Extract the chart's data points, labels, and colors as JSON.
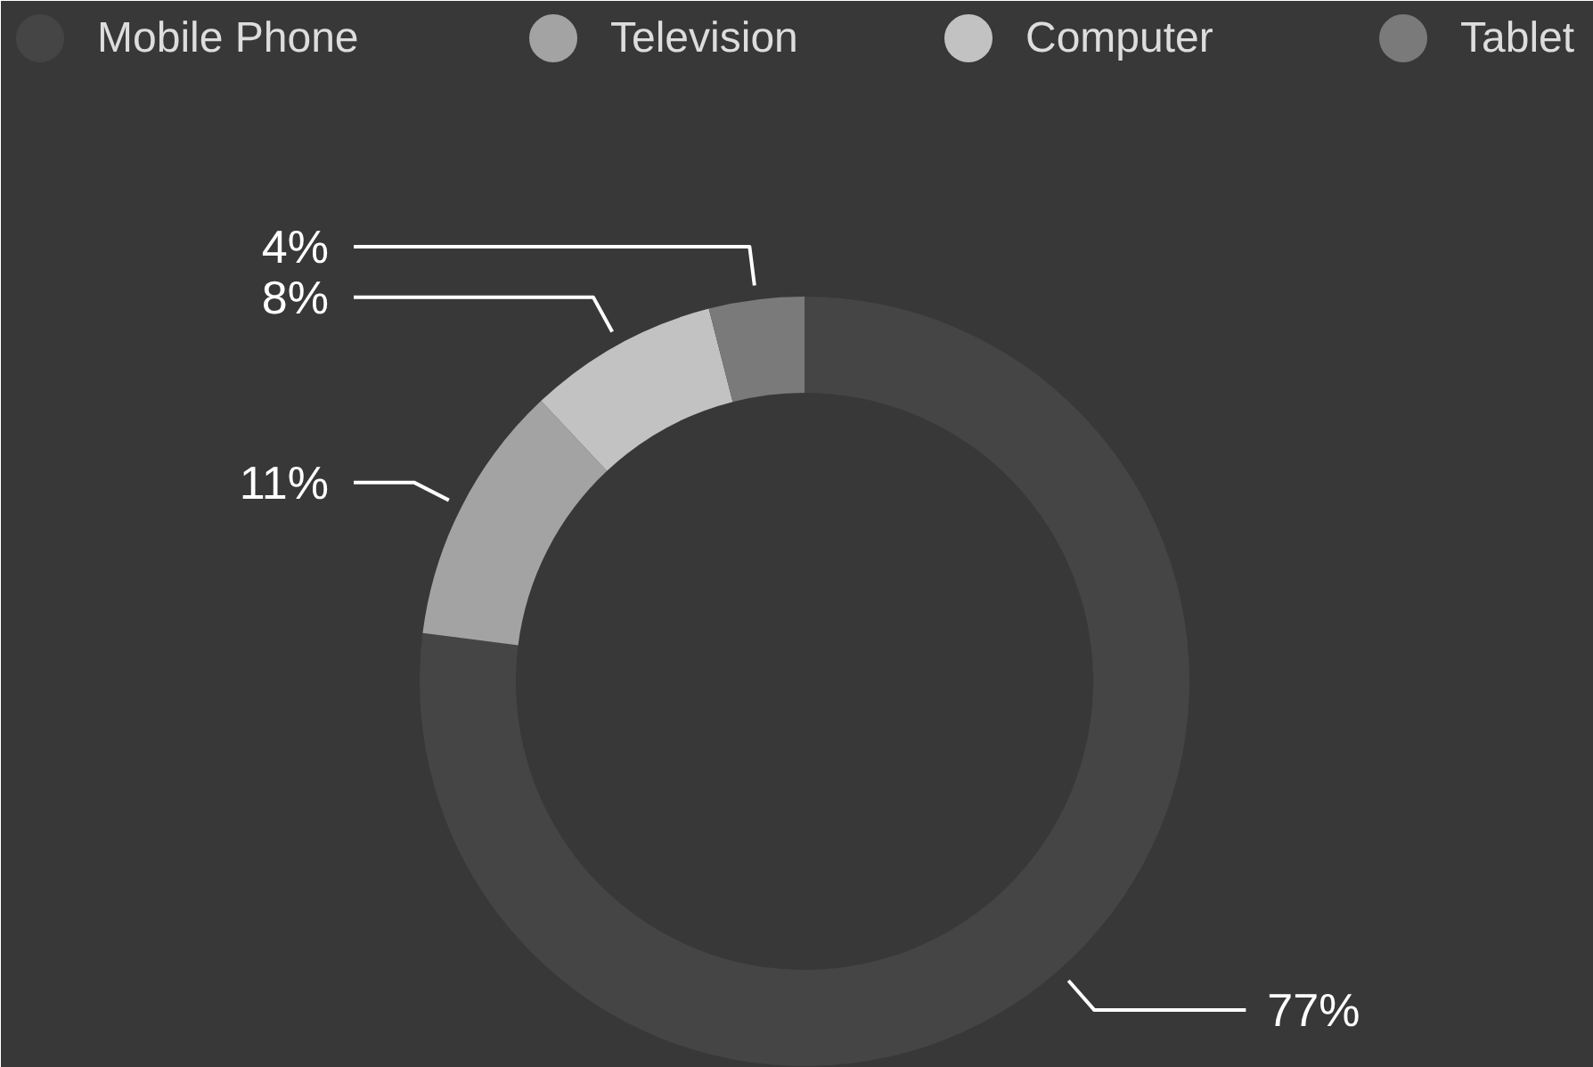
{
  "chart_data": {
    "type": "donut",
    "categories": [
      "Mobile Phone",
      "Television",
      "Computer",
      "Tablet"
    ],
    "values": [
      77,
      11,
      8,
      4
    ],
    "colors": [
      "#454545",
      "#a3a3a3",
      "#c2c2c2",
      "#7a7a7a"
    ],
    "value_labels": [
      "77%",
      "11%",
      "8%",
      "4%"
    ],
    "legend": "top"
  }
}
